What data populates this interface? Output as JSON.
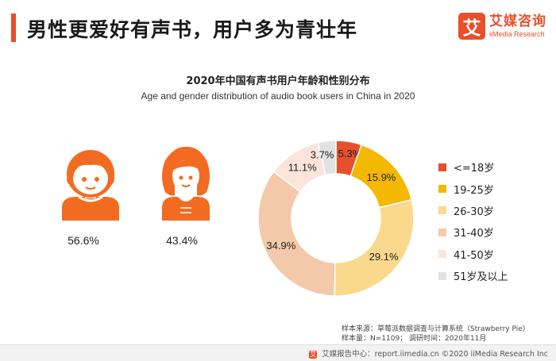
{
  "header": {
    "title": "男性更爱好有声书，用户多为青壮年",
    "accent_color": "#e84f2a"
  },
  "logo": {
    "mark": "艾",
    "name_cn": "艾媒咨询",
    "name_en": "iiMedia Research"
  },
  "gender": {
    "male_percent": "56.6%",
    "female_percent": "43.4%",
    "male_icon": "male-person-icon",
    "female_icon": "female-person-icon",
    "icon_color": "#f26b21"
  },
  "chart_data": {
    "type": "pie",
    "title": "2020年中国有声书用户年龄和性别分布",
    "subtitle": "Age and gender distribution of audio book users in China in 2020",
    "legend_position": "right",
    "series": [
      {
        "name": "<=18岁",
        "value": 5.3,
        "label": "5.3%",
        "color": "#e84f2a"
      },
      {
        "name": "19-25岁",
        "value": 15.9,
        "label": "15.9%",
        "color": "#f5b800"
      },
      {
        "name": "26-30岁",
        "value": 29.1,
        "label": "29.1%",
        "color": "#fad98c"
      },
      {
        "name": "31-40岁",
        "value": 34.9,
        "label": "34.9%",
        "color": "#f3c9a9"
      },
      {
        "name": "41-50岁",
        "value": 11.1,
        "label": "11.1%",
        "color": "#fbe5da"
      },
      {
        "name": "51岁及以上",
        "value": 3.7,
        "label": "3.7%",
        "color": "#e2e2e2"
      }
    ]
  },
  "source": {
    "line1": "样本来源：草莓派数据调查与计算系统（Strawberry Pie）",
    "line2": "样本量：N=1109；  调研时间：2020年11月"
  },
  "footer": {
    "mark": "艾",
    "text": "艾媒报告中心：report.iimedia.cn  ©2020 iiMedia Research Inc"
  }
}
